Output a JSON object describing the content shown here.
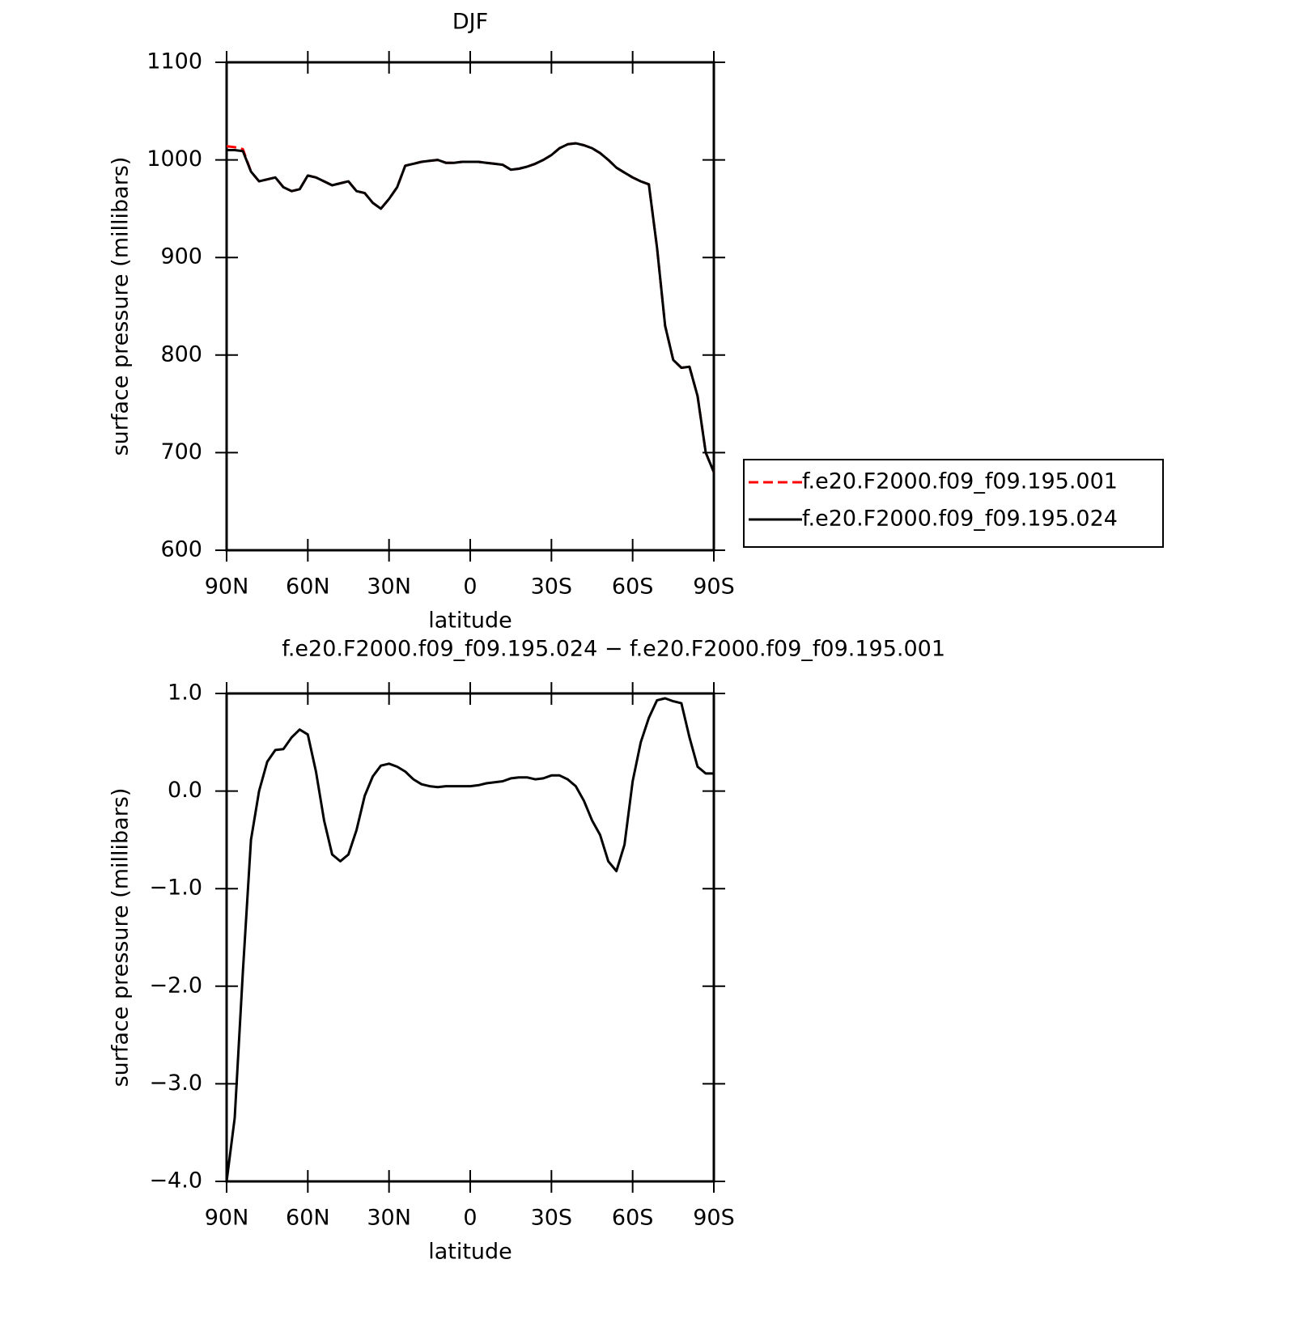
{
  "chart_data": [
    {
      "type": "line",
      "title": "DJF",
      "xlabel": "latitude",
      "ylabel": "surface pressure (millibars)",
      "x": [
        90,
        87,
        84,
        81,
        78,
        75,
        72,
        69,
        66,
        63,
        60,
        57,
        54,
        51,
        48,
        45,
        42,
        39,
        36,
        33,
        30,
        27,
        24,
        21,
        18,
        15,
        12,
        9,
        6,
        3,
        0,
        -3,
        -6,
        -9,
        -12,
        -15,
        -18,
        -21,
        -24,
        -27,
        -30,
        -33,
        -36,
        -39,
        -42,
        -45,
        -48,
        -51,
        -54,
        -57,
        -60,
        -63,
        -66,
        -69,
        -72,
        -75,
        -78,
        -81,
        -84,
        -87,
        -90
      ],
      "xlim": [
        90,
        -90
      ],
      "xticks": [
        {
          "value": 90,
          "label": "90N"
        },
        {
          "value": 60,
          "label": "60N"
        },
        {
          "value": 30,
          "label": "30N"
        },
        0,
        {
          "value": -30,
          "label": "30S"
        },
        {
          "value": -60,
          "label": "60S"
        },
        {
          "value": -90,
          "label": "90S"
        }
      ],
      "ylim": [
        600,
        1100
      ],
      "yticks": [
        600,
        700,
        800,
        900,
        1000,
        1100
      ],
      "legend": "right",
      "series": [
        {
          "name": "f.e20.F2000.f09_f09.195.001",
          "color": "#ff0000",
          "dash": true,
          "values": [
            1014,
            1013,
            1011,
            988,
            978,
            980,
            982,
            972,
            968,
            970,
            984,
            982,
            978,
            974,
            976,
            978,
            968,
            966,
            956,
            950,
            960,
            972,
            994,
            996,
            998,
            999,
            1000,
            997,
            997,
            998,
            998,
            998,
            997,
            996,
            995,
            990,
            991,
            993,
            996,
            1000,
            1005,
            1012,
            1016,
            1017,
            1015,
            1012,
            1007,
            1000,
            992,
            987,
            982,
            978,
            975,
            910,
            830,
            795,
            787,
            788,
            758,
            700,
            680
          ]
        },
        {
          "name": "f.e20.F2000.f09_f09.195.024",
          "color": "#000000",
          "dash": false,
          "values": [
            1010,
            1010,
            1009,
            988,
            978,
            980,
            982,
            972,
            968,
            970,
            984,
            982,
            978,
            974,
            976,
            978,
            968,
            966,
            956,
            950,
            960,
            972,
            994,
            996,
            998,
            999,
            1000,
            997,
            997,
            998,
            998,
            998,
            997,
            996,
            995,
            990,
            991,
            993,
            996,
            1000,
            1005,
            1012,
            1016,
            1017,
            1015,
            1012,
            1007,
            1000,
            992,
            987,
            982,
            978,
            975,
            910,
            830,
            795,
            787,
            788,
            758,
            700,
            680
          ]
        }
      ]
    },
    {
      "type": "line",
      "title": "f.e20.F2000.f09_f09.195.024 − f.e20.F2000.f09_f09.195.001",
      "xlabel": "latitude",
      "ylabel": "surface pressure (millibars)",
      "x": [
        90,
        87,
        84,
        81,
        78,
        75,
        72,
        69,
        66,
        63,
        60,
        57,
        54,
        51,
        48,
        45,
        42,
        39,
        36,
        33,
        30,
        27,
        24,
        21,
        18,
        15,
        12,
        9,
        6,
        3,
        0,
        -3,
        -6,
        -9,
        -12,
        -15,
        -18,
        -21,
        -24,
        -27,
        -30,
        -33,
        -36,
        -39,
        -42,
        -45,
        -48,
        -51,
        -54,
        -57,
        -60,
        -63,
        -66,
        -69,
        -72,
        -75,
        -78,
        -81,
        -84,
        -87,
        -90
      ],
      "xlim": [
        90,
        -90
      ],
      "xticks": [
        {
          "value": 90,
          "label": "90N"
        },
        {
          "value": 60,
          "label": "60N"
        },
        {
          "value": 30,
          "label": "30N"
        },
        0,
        {
          "value": -30,
          "label": "30S"
        },
        {
          "value": -60,
          "label": "60S"
        },
        {
          "value": -90,
          "label": "90S"
        }
      ],
      "ylim": [
        -4,
        1
      ],
      "yticks": [
        {
          "value": -4,
          "label": "−4.0"
        },
        {
          "value": -3,
          "label": "−3.0"
        },
        {
          "value": -2,
          "label": "−2.0"
        },
        {
          "value": -1,
          "label": "−1.0"
        },
        {
          "value": 0,
          "label": "0.0"
        },
        {
          "value": 1,
          "label": "1.0"
        }
      ],
      "color": "#000000",
      "values": [
        -4.0,
        -3.35,
        -1.85,
        -0.5,
        0.0,
        0.3,
        0.42,
        0.43,
        0.55,
        0.63,
        0.58,
        0.2,
        -0.3,
        -0.65,
        -0.72,
        -0.65,
        -0.4,
        -0.05,
        0.15,
        0.26,
        0.28,
        0.25,
        0.2,
        0.12,
        0.07,
        0.05,
        0.04,
        0.05,
        0.05,
        0.05,
        0.05,
        0.06,
        0.08,
        0.09,
        0.1,
        0.13,
        0.14,
        0.14,
        0.12,
        0.13,
        0.16,
        0.16,
        0.12,
        0.05,
        -0.1,
        -0.3,
        -0.45,
        -0.72,
        -0.82,
        -0.55,
        0.1,
        0.5,
        0.75,
        0.93,
        0.95,
        0.92,
        0.9,
        0.55,
        0.25,
        0.18,
        0.18
      ]
    }
  ]
}
